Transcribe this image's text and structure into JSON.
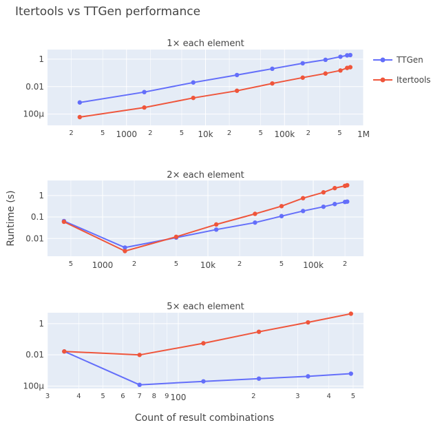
{
  "chart_data": {
    "type": "line",
    "title": "Itertools vs TTGen performance",
    "xlabel": "Count of result combinations",
    "ylabel": "Runtime (s)",
    "legend_position": "top-right",
    "legend": [
      {
        "name": "TTGen",
        "color": "#636efa"
      },
      {
        "name": "Itertools",
        "color": "#ef553b"
      }
    ],
    "subplots": [
      {
        "title": "1× each element",
        "x_scale": "log",
        "y_scale": "log",
        "xlim": [
          100,
          1000000
        ],
        "ylim": [
          1.5e-05,
          5
        ],
        "x_ticks": [
          {
            "value": 200,
            "label": "2",
            "minor": true
          },
          {
            "value": 500,
            "label": "5",
            "minor": true
          },
          {
            "value": 1000,
            "label": "1000",
            "minor": false
          },
          {
            "value": 2000,
            "label": "2",
            "minor": true
          },
          {
            "value": 5000,
            "label": "5",
            "minor": true
          },
          {
            "value": 10000,
            "label": "10k",
            "minor": false
          },
          {
            "value": 20000,
            "label": "2",
            "minor": true
          },
          {
            "value": 50000,
            "label": "5",
            "minor": true
          },
          {
            "value": 100000,
            "label": "100k",
            "minor": false
          },
          {
            "value": 200000,
            "label": "2",
            "minor": true
          },
          {
            "value": 500000,
            "label": "5",
            "minor": true
          },
          {
            "value": 1000000,
            "label": "1M",
            "minor": false
          }
        ],
        "y_ticks": [
          {
            "value": 1,
            "label": "1"
          },
          {
            "value": 0.01,
            "label": "0.01"
          },
          {
            "value": 0.0001,
            "label": "100μ"
          }
        ],
        "series": [
          {
            "name": "TTGen",
            "x": [
              256,
              1679,
              7001,
              25000,
              70000,
              170000,
              330000,
              510000,
              620000,
              680000
            ],
            "y": [
              0.0007,
              0.004,
              0.02,
              0.07,
              0.2,
              0.5,
              0.9,
              1.5,
              1.9,
              2.0
            ]
          },
          {
            "name": "Itertools",
            "x": [
              256,
              1679,
              7001,
              25000,
              70000,
              170000,
              330000,
              510000,
              620000,
              680000
            ],
            "y": [
              6e-05,
              0.0003,
              0.0015,
              0.005,
              0.017,
              0.045,
              0.09,
              0.15,
              0.23,
              0.26
            ]
          }
        ]
      },
      {
        "title": "2× each element",
        "x_scale": "log",
        "y_scale": "log",
        "xlim": [
          300,
          300000
        ],
        "ylim": [
          0.0015,
          5
        ],
        "x_ticks": [
          {
            "value": 500,
            "label": "5",
            "minor": true
          },
          {
            "value": 1000,
            "label": "1000",
            "minor": false
          },
          {
            "value": 2000,
            "label": "2",
            "minor": true
          },
          {
            "value": 5000,
            "label": "5",
            "minor": true
          },
          {
            "value": 10000,
            "label": "10k",
            "minor": false
          },
          {
            "value": 20000,
            "label": "2",
            "minor": true
          },
          {
            "value": 50000,
            "label": "5",
            "minor": true
          },
          {
            "value": 100000,
            "label": "100k",
            "minor": false
          },
          {
            "value": 200000,
            "label": "2",
            "minor": true
          }
        ],
        "y_ticks": [
          {
            "value": 1,
            "label": "1"
          },
          {
            "value": 0.1,
            "label": "0.1"
          },
          {
            "value": 0.01,
            "label": "0.01"
          }
        ],
        "series": [
          {
            "name": "TTGen",
            "x": [
              430,
              1630,
              5000,
              12000,
              28000,
              50000,
              80000,
              125000,
              160000,
              200000,
              210000
            ],
            "y": [
              0.065,
              0.0038,
              0.011,
              0.026,
              0.055,
              0.11,
              0.19,
              0.3,
              0.4,
              0.5,
              0.52
            ]
          },
          {
            "name": "Itertools",
            "x": [
              430,
              1630,
              5000,
              12000,
              28000,
              50000,
              80000,
              125000,
              160000,
              200000,
              210000
            ],
            "y": [
              0.06,
              0.0026,
              0.012,
              0.045,
              0.14,
              0.32,
              0.75,
              1.4,
              2.2,
              2.8,
              3.0
            ]
          }
        ]
      },
      {
        "title": "5× each element",
        "x_scale": "log",
        "y_scale": "log",
        "xlim": [
          30,
          550
        ],
        "ylim": [
          7e-05,
          5
        ],
        "x_ticks": [
          {
            "value": 30,
            "label": "3",
            "minor": true
          },
          {
            "value": 40,
            "label": "4",
            "minor": true
          },
          {
            "value": 50,
            "label": "5",
            "minor": true
          },
          {
            "value": 60,
            "label": "6",
            "minor": true
          },
          {
            "value": 70,
            "label": "7",
            "minor": true
          },
          {
            "value": 80,
            "label": "8",
            "minor": true
          },
          {
            "value": 90,
            "label": "9",
            "minor": true
          },
          {
            "value": 100,
            "label": "100",
            "minor": false
          },
          {
            "value": 200,
            "label": "2",
            "minor": true
          },
          {
            "value": 300,
            "label": "3",
            "minor": true
          },
          {
            "value": 400,
            "label": "4",
            "minor": true
          },
          {
            "value": 500,
            "label": "5",
            "minor": true
          }
        ],
        "y_ticks": [
          {
            "value": 1,
            "label": "1"
          },
          {
            "value": 0.01,
            "label": "0.01"
          },
          {
            "value": 0.0001,
            "label": "100μ"
          }
        ],
        "series": [
          {
            "name": "TTGen",
            "x": [
              35,
              70,
              126,
              210,
              330,
              490
            ],
            "y": [
              0.0165,
              0.00012,
              0.0002,
              0.0003,
              0.00042,
              0.00062
            ]
          },
          {
            "name": "Itertools",
            "x": [
              35,
              70,
              126,
              210,
              330,
              490
            ],
            "y": [
              0.0165,
              0.0099,
              0.055,
              0.3,
              1.2,
              4.3
            ]
          }
        ]
      }
    ]
  }
}
